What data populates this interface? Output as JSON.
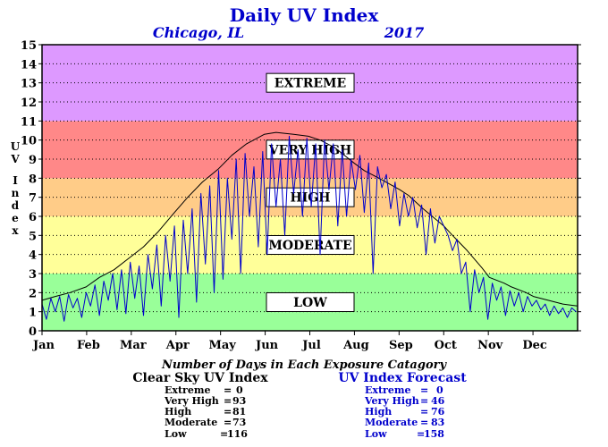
{
  "chart_data": {
    "type": "line",
    "title": "Daily UV Index",
    "location": "Chicago, IL",
    "year": "2017",
    "ylabel": "UV Index",
    "ylim": [
      0,
      15
    ],
    "yticks": [
      0,
      1,
      2,
      3,
      4,
      5,
      6,
      7,
      8,
      9,
      10,
      11,
      12,
      13,
      14,
      15
    ],
    "x_tick_labels": [
      "Jan",
      "Feb",
      "Mar",
      "Apr",
      "May",
      "Jun",
      "Jul",
      "Aug",
      "Sep",
      "Oct",
      "Nov",
      "Dec"
    ],
    "xlim_days": [
      1,
      365
    ],
    "grid": "dotted horizontal at every integer",
    "bands": [
      {
        "label": "LOW",
        "from": 0,
        "to": 3,
        "color": "#99ff99"
      },
      {
        "label": "MODERATE",
        "from": 3,
        "to": 6,
        "color": "#ffff99"
      },
      {
        "label": "HIGH",
        "from": 6,
        "to": 8,
        "color": "#ffcc88"
      },
      {
        "label": "VERY HIGH",
        "from": 8,
        "to": 11,
        "color": "#ff8888"
      },
      {
        "label": "EXTREME",
        "from": 11,
        "to": 15,
        "color": "#dd99ff"
      }
    ],
    "series": [
      {
        "name": "Clear Sky UV Index",
        "color": "#000000",
        "x": [
          1,
          10,
          20,
          31,
          40,
          50,
          60,
          70,
          80,
          91,
          100,
          110,
          121,
          130,
          140,
          152,
          160,
          172,
          182,
          190,
          200,
          213,
          220,
          230,
          244,
          250,
          260,
          274,
          280,
          290,
          300,
          305,
          315,
          320,
          330,
          335,
          345,
          355,
          365
        ],
        "y": [
          1.6,
          1.8,
          2.0,
          2.3,
          2.8,
          3.2,
          3.8,
          4.4,
          5.2,
          6.2,
          7.0,
          7.8,
          8.5,
          9.2,
          9.8,
          10.3,
          10.4,
          10.3,
          10.2,
          10.0,
          9.6,
          8.8,
          8.4,
          8.0,
          7.4,
          7.1,
          6.4,
          5.5,
          5.0,
          4.2,
          3.3,
          2.8,
          2.5,
          2.3,
          2.0,
          1.8,
          1.6,
          1.4,
          1.3
        ]
      },
      {
        "name": "UV Index Forecast",
        "color": "#0000cc",
        "x": [
          1,
          4,
          7,
          10,
          13,
          16,
          19,
          22,
          25,
          28,
          31,
          34,
          37,
          40,
          43,
          46,
          49,
          52,
          55,
          58,
          61,
          64,
          67,
          70,
          73,
          76,
          79,
          82,
          85,
          88,
          91,
          94,
          97,
          100,
          103,
          106,
          109,
          112,
          115,
          118,
          121,
          124,
          127,
          130,
          133,
          136,
          139,
          142,
          145,
          148,
          151,
          154,
          157,
          160,
          163,
          166,
          169,
          172,
          175,
          178,
          181,
          184,
          187,
          190,
          193,
          196,
          199,
          202,
          205,
          208,
          211,
          214,
          217,
          220,
          223,
          226,
          229,
          232,
          235,
          238,
          241,
          244,
          247,
          250,
          253,
          256,
          259,
          262,
          265,
          268,
          271,
          274,
          277,
          280,
          283,
          286,
          289,
          292,
          295,
          298,
          301,
          304,
          307,
          310,
          313,
          316,
          319,
          322,
          325,
          328,
          331,
          334,
          337,
          340,
          343,
          346,
          349,
          352,
          355,
          358,
          361,
          364
        ],
        "y": [
          1.4,
          0.6,
          1.7,
          1.0,
          1.8,
          0.5,
          1.9,
          1.2,
          1.7,
          0.7,
          2.0,
          1.3,
          2.4,
          0.8,
          2.6,
          1.6,
          3.0,
          1.1,
          3.2,
          0.9,
          3.6,
          1.7,
          3.4,
          0.8,
          4.0,
          2.2,
          4.5,
          1.3,
          5.0,
          2.6,
          5.5,
          0.7,
          5.8,
          3.0,
          6.4,
          1.5,
          7.2,
          3.5,
          7.6,
          2.0,
          8.4,
          2.7,
          8.0,
          4.8,
          9.0,
          3.0,
          9.3,
          6.0,
          8.6,
          4.4,
          9.4,
          4.0,
          9.8,
          6.5,
          9.0,
          5.0,
          10.2,
          7.2,
          9.5,
          6.0,
          10.1,
          6.5,
          9.8,
          4.0,
          10.0,
          7.4,
          9.8,
          5.5,
          9.5,
          6.0,
          9.0,
          7.4,
          9.2,
          6.2,
          8.8,
          3.0,
          8.6,
          7.5,
          8.2,
          6.4,
          7.8,
          5.5,
          7.2,
          6.0,
          7.0,
          5.4,
          6.6,
          4.0,
          6.4,
          4.6,
          6.0,
          5.5,
          5.0,
          4.2,
          4.8,
          3.0,
          3.6,
          1.0,
          3.2,
          2.0,
          2.8,
          0.6,
          2.5,
          1.6,
          2.3,
          0.8,
          2.1,
          1.3,
          2.0,
          1.0,
          1.8,
          1.3,
          1.6,
          1.1,
          1.4,
          0.8,
          1.3,
          0.9,
          1.2,
          0.7,
          1.2,
          1.0
        ]
      }
    ]
  },
  "stats_heading": "Number of Days in Each Exposure Catagory",
  "stats": [
    {
      "title": "Clear Sky UV Index",
      "rows": [
        {
          "label": "Extreme",
          "value": "0"
        },
        {
          "label": "Very High",
          "value": "93"
        },
        {
          "label": "High",
          "value": "81"
        },
        {
          "label": "Moderate",
          "value": "73"
        },
        {
          "label": "Low",
          "value": "116"
        }
      ]
    },
    {
      "title": "UV Index Forecast",
      "rows": [
        {
          "label": "Extreme",
          "value": "0"
        },
        {
          "label": "Very High",
          "value": "46"
        },
        {
          "label": "High",
          "value": "76"
        },
        {
          "label": "Moderate",
          "value": "83"
        },
        {
          "label": "Low",
          "value": "158"
        }
      ]
    }
  ]
}
